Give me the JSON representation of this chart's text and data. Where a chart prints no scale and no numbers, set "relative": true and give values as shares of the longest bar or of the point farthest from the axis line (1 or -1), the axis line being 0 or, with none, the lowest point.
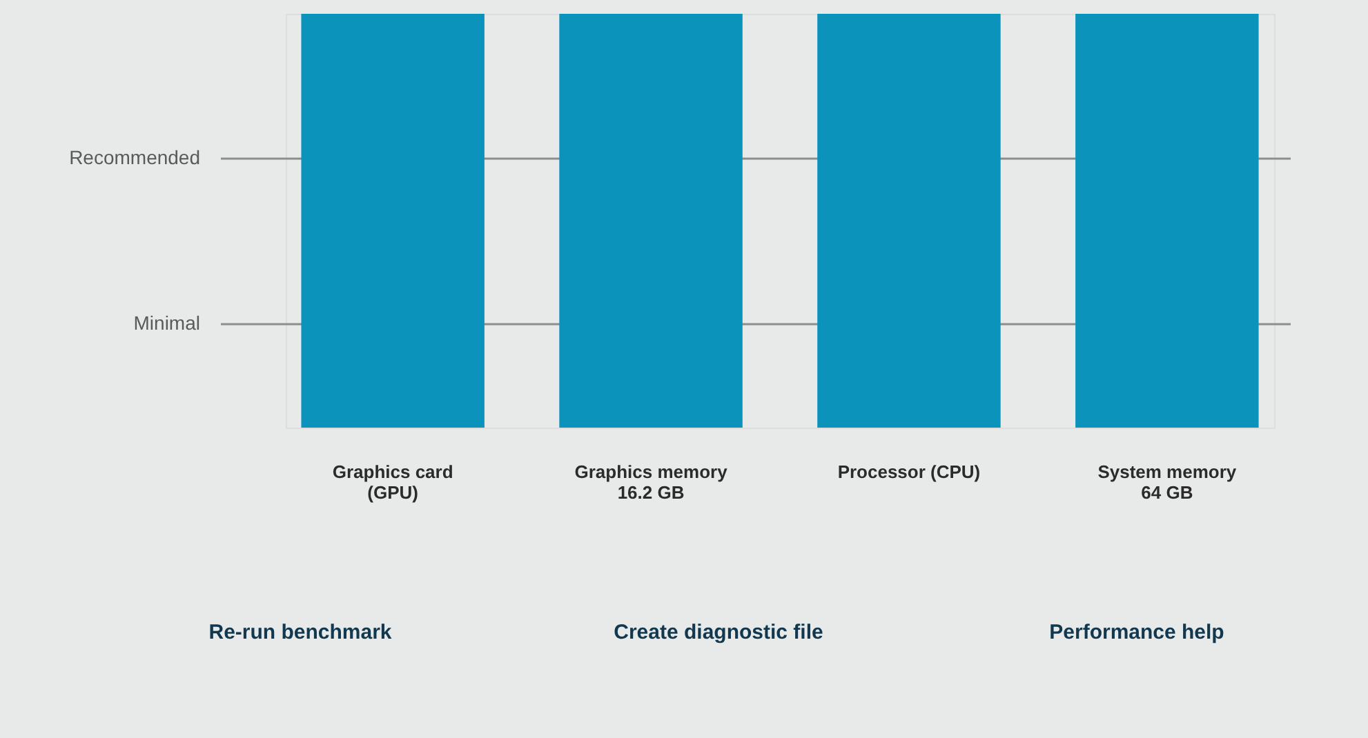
{
  "chart_data": {
    "type": "bar",
    "relative": true,
    "categories": [
      "Graphics card (GPU)",
      "Graphics memory 16.2 GB",
      "Processor (CPU)",
      "System memory 64 GB"
    ],
    "values": [
      1,
      1,
      1,
      1
    ],
    "color": "#0b93bb",
    "ref_lines": [
      {
        "axis": "y",
        "value": 0.65,
        "label": "Recommended",
        "color": "#8c8e8e"
      },
      {
        "axis": "y",
        "value": 0.25,
        "label": "Minimal",
        "color": "#8c8e8e"
      }
    ],
    "annotations": [
      "Re-run benchmark",
      "Create diagnostic file",
      "Performance help"
    ]
  }
}
